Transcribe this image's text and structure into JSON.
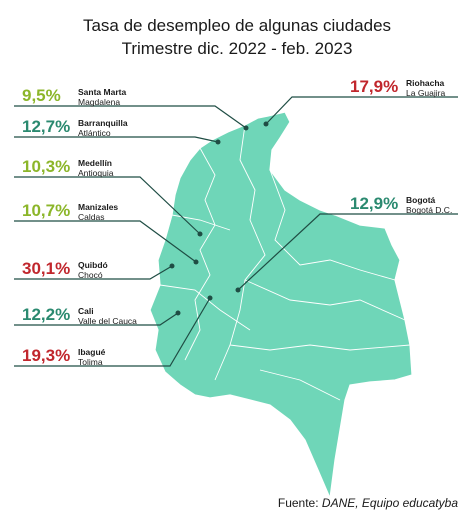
{
  "title": {
    "line1": "Tasa de desempleo de algunas ciudades",
    "line2": "Trimestre dic. 2022 - feb. 2023"
  },
  "cities": [
    {
      "value": "9,5%",
      "city": "Santa Marta",
      "department": "Magdalena",
      "color": "#8cb62a"
    },
    {
      "value": "12,7%",
      "city": "Barranquilla",
      "department": "Atlántico",
      "color": "#2b8a70"
    },
    {
      "value": "10,3%",
      "city": "Medellín",
      "department": "Antioquia",
      "color": "#8cb62a"
    },
    {
      "value": "10,7%",
      "city": "Manizales",
      "department": "Caldas",
      "color": "#8cb62a"
    },
    {
      "value": "30,1%",
      "city": "Quibdó",
      "department": "Chocó",
      "color": "#c1272d"
    },
    {
      "value": "12,2%",
      "city": "Cali",
      "department": "Valle del Cauca",
      "color": "#2b8a70"
    },
    {
      "value": "19,3%",
      "city": "Ibagué",
      "department": "Tolima",
      "color": "#c1272d"
    },
    {
      "value": "17,9%",
      "city": "Riohacha",
      "department": "La Guajira",
      "color": "#c1272d"
    },
    {
      "value": "12,9%",
      "city": "Bogotá",
      "department": "Bogotá D.C.",
      "color": "#2b8a70"
    }
  ],
  "source": {
    "label": "Fuente:",
    "text": "DANE, Equipo educatyba"
  }
}
